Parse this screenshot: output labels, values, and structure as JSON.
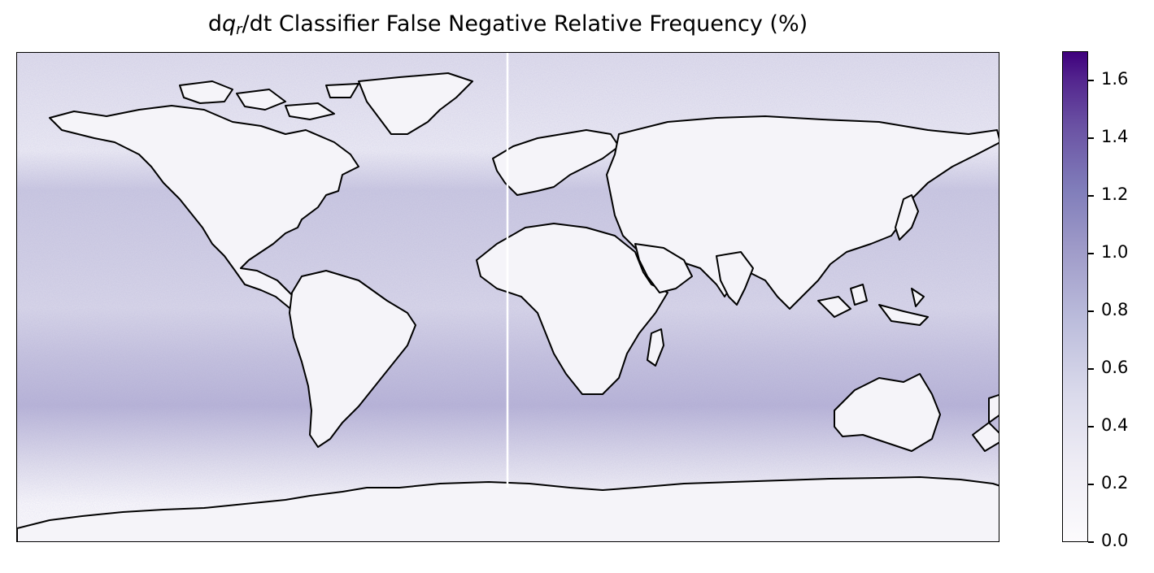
{
  "title": {
    "prefix": "d",
    "var": "q",
    "sub": "r",
    "suffix": "/dt Classifier False Negative Relative Frequency (%)"
  },
  "map": {
    "projection": "equirectangular",
    "lon_range": [
      -180,
      180
    ],
    "lat_range": [
      -90,
      90
    ],
    "coastline_color": "#000000",
    "missing_meridian_line_lon": 0
  },
  "colorbar": {
    "cmap": "Purples",
    "vmin": 0.0,
    "vmax": 1.7,
    "ticks": [
      "0.0",
      "0.2",
      "0.4",
      "0.6",
      "0.8",
      "1.0",
      "1.2",
      "1.4",
      "1.6"
    ],
    "color_low": "#fcfbfd",
    "color_high": "#3f007d"
  }
}
